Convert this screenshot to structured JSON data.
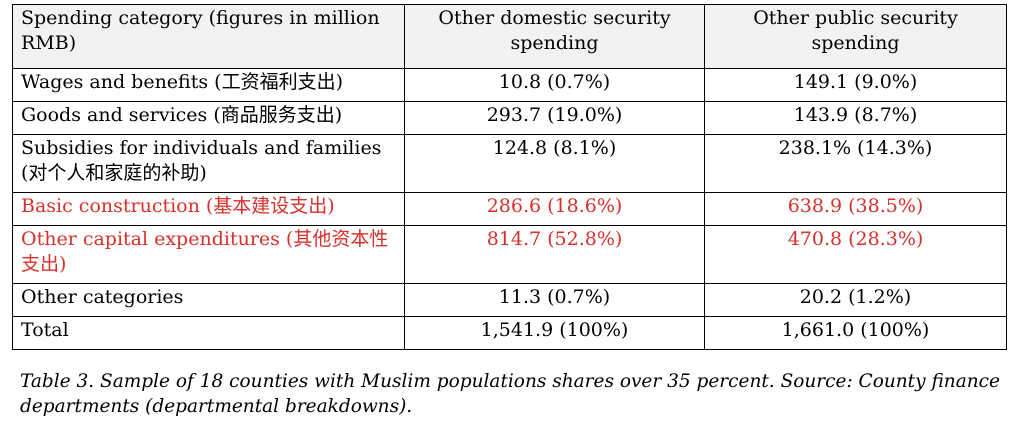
{
  "table": {
    "headers": [
      "Spending category (figures in million RMB)",
      "Other domestic security spending",
      "Other public security spending"
    ],
    "rows": [
      {
        "category": "Wages and benefits (工资福利支出)",
        "domestic": "10.8 (0.7%)",
        "public": "149.1 (9.0%)"
      },
      {
        "category": "Goods and services (商品服务支出)",
        "domestic": "293.7 (19.0%)",
        "public": "143.9 (8.7%)"
      },
      {
        "category": "Subsidies for individuals and families (对个人和家庭的补助)",
        "domestic": "124.8 (8.1%)",
        "public": "238.1% (14.3%)"
      },
      {
        "category": "Basic construction (基本建设支出)",
        "domestic": "286.6 (18.6%)",
        "public": "638.9 (38.5%)"
      },
      {
        "category": "Other capital expenditures (其他资本性支出)",
        "domestic": "814.7 (52.8%)",
        "public": "470.8 (28.3%)"
      },
      {
        "category": "Other categories",
        "domestic": "11.3 (0.7%)",
        "public": "20.2 (1.2%)"
      },
      {
        "category": "Total",
        "domestic": "1,541.9 (100%)",
        "public": "1,661.0 (100%)"
      }
    ],
    "highlight_color": "#d8302b",
    "header_background": "#f2f2f2"
  },
  "caption": "Table 3. Sample of 18 counties with Muslim populations shares over 35 percent. Source: County finance departments (departmental breakdowns)."
}
